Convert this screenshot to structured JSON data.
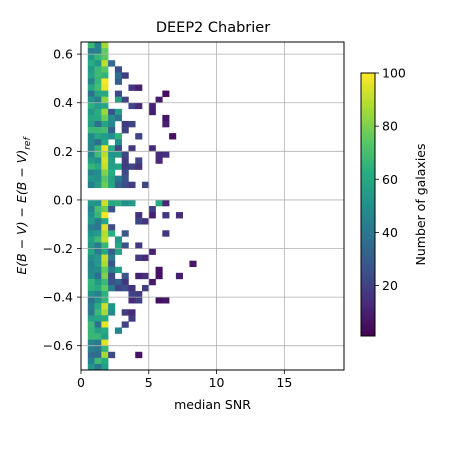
{
  "chart_data": {
    "type": "heatmap",
    "title": "DEEP2 Chabrier",
    "xlabel": "median SNR",
    "ylabel": {
      "text": "E(B − V) − E(B − V)",
      "subscript": "ref"
    },
    "xlim": [
      0,
      19.4
    ],
    "ylim": [
      -0.7,
      0.65
    ],
    "xticks": [
      {
        "value": 0,
        "label": "0"
      },
      {
        "value": 5,
        "label": "5"
      },
      {
        "value": 10,
        "label": "10"
      },
      {
        "value": 15,
        "label": "15"
      }
    ],
    "yticks": [
      {
        "value": 0.6,
        "label": "0.6"
      },
      {
        "value": 0.4,
        "label": "0.4"
      },
      {
        "value": 0.2,
        "label": "0.2"
      },
      {
        "value": 0.0,
        "label": "0.0"
      },
      {
        "value": -0.2,
        "label": "−0.2"
      },
      {
        "value": -0.4,
        "label": "−0.4"
      },
      {
        "value": -0.6,
        "label": "−0.6"
      }
    ],
    "grid": true,
    "colormap": "viridis",
    "colorbar": {
      "label": "Number of galaxies",
      "range": [
        1,
        100
      ],
      "ticks": [
        {
          "value": 20,
          "label": "20"
        },
        {
          "value": 40,
          "label": "40"
        },
        {
          "value": 60,
          "label": "60"
        },
        {
          "value": 80,
          "label": "80"
        },
        {
          "value": 100,
          "label": "100"
        }
      ]
    },
    "cell_width_snr": 0.5,
    "cell_height_dex": 0.025
  }
}
